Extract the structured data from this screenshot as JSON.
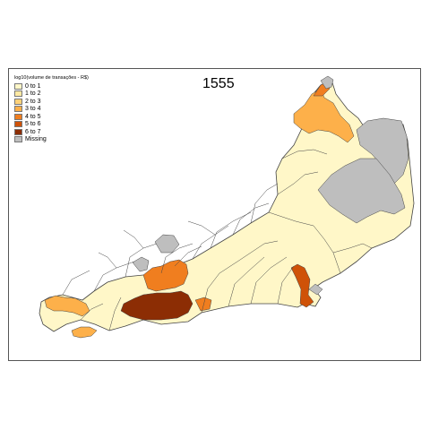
{
  "map": {
    "year_label": "1555",
    "legend": {
      "title": "log10(volume de transações - R$)",
      "items": [
        {
          "label": "0 to 1",
          "color": "#FFF7C8"
        },
        {
          "label": "1 to 2",
          "color": "#FEE9A3"
        },
        {
          "label": "2 to 3",
          "color": "#FED27A"
        },
        {
          "label": "3 to 4",
          "color": "#FDB04A"
        },
        {
          "label": "4 to 5",
          "color": "#F07E1F"
        },
        {
          "label": "5 to 6",
          "color": "#CF5208"
        },
        {
          "label": "6 to 7",
          "color": "#8C2D04"
        },
        {
          "label": "Missing",
          "color": "#BEBEBE"
        }
      ]
    },
    "regions": [
      {
        "name": "northwest-orange-cluster",
        "class": "3 to 4"
      },
      {
        "name": "north-tip-darker",
        "class": "4 to 5"
      },
      {
        "name": "north-missing",
        "class": "Missing"
      },
      {
        "name": "northeast-missing",
        "class": "Missing"
      },
      {
        "name": "east-missing",
        "class": "Missing"
      },
      {
        "name": "central-missing",
        "class": "Missing"
      },
      {
        "name": "central-small-missing",
        "class": "Missing"
      },
      {
        "name": "metro-orange",
        "class": "4 to 5"
      },
      {
        "name": "metro-rio",
        "class": "6 to 7"
      },
      {
        "name": "metro-niteroi",
        "class": "4 to 5"
      },
      {
        "name": "lakes-region",
        "class": "5 to 6"
      },
      {
        "name": "cabo-frio-missing",
        "class": "Missing"
      },
      {
        "name": "south-coast",
        "class": "3 to 4"
      },
      {
        "name": "island-ilha-grande",
        "class": "3 to 4"
      }
    ]
  }
}
